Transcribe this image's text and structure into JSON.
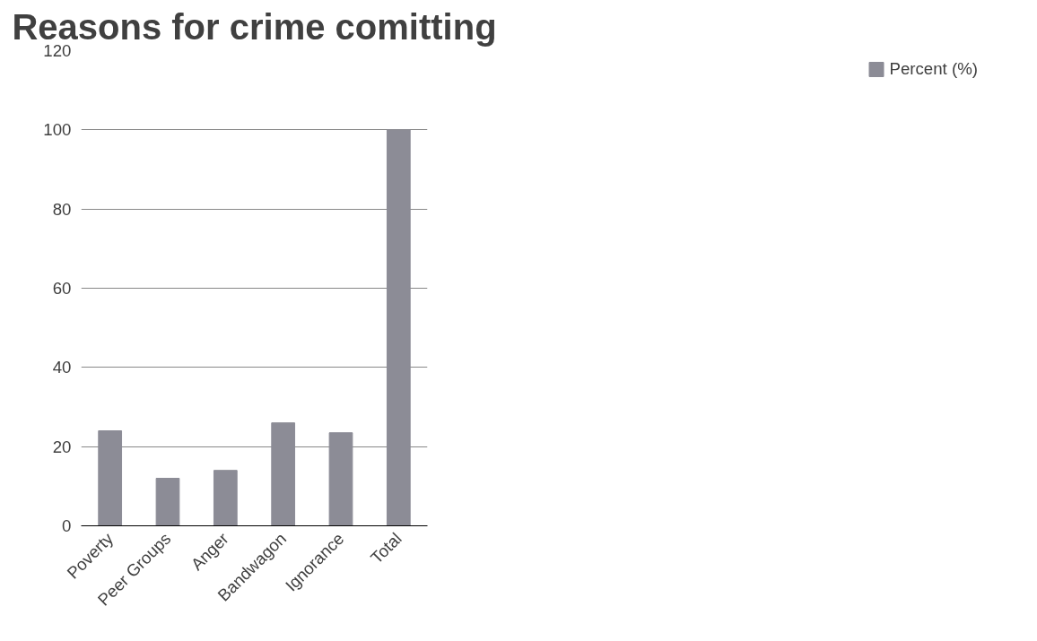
{
  "chart_data": {
    "type": "bar",
    "title": "Reasons for crime comitting",
    "categories": [
      "Poverty",
      "Peer Groups",
      "Anger",
      "Bandwagon",
      "Ignorance",
      "Total"
    ],
    "series": [
      {
        "name": "Percent (%)",
        "color": "#8c8c96",
        "values": [
          24,
          12,
          14,
          26,
          23.5,
          100
        ]
      }
    ],
    "ylim": [
      0,
      120
    ],
    "yticks": [
      0,
      20,
      40,
      60,
      80,
      100,
      120
    ],
    "grid": "y",
    "legend": "right"
  }
}
